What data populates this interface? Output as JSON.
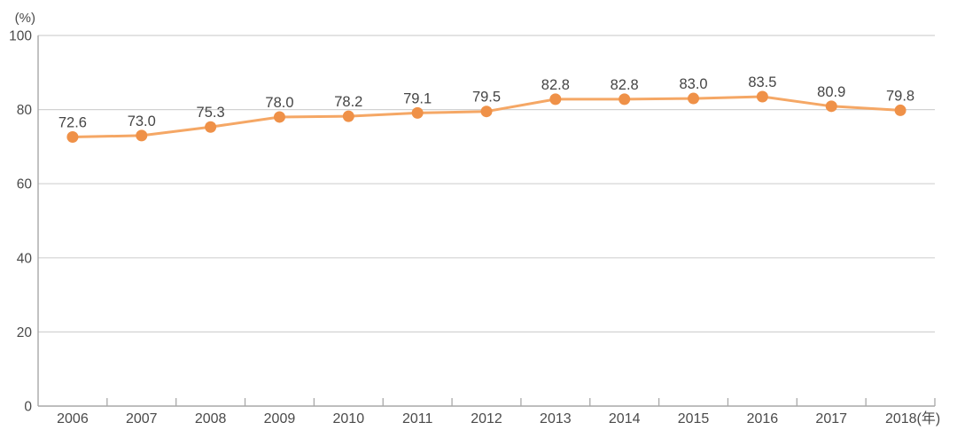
{
  "chart_data": {
    "type": "line",
    "title": "",
    "y_unit_label": "(%)",
    "x_unit_suffix": "(年)",
    "categories": [
      "2006",
      "2007",
      "2008",
      "2009",
      "2010",
      "2011",
      "2012",
      "2013",
      "2014",
      "2015",
      "2016",
      "2017",
      "2018"
    ],
    "values": [
      72.6,
      73.0,
      75.3,
      78.0,
      78.2,
      79.1,
      79.5,
      82.8,
      82.8,
      83.0,
      83.5,
      80.9,
      79.8
    ],
    "point_labels": [
      "72.6",
      "73.0",
      "75.3",
      "78.0",
      "78.2",
      "79.1",
      "79.5",
      "82.8",
      "82.8",
      "83.0",
      "83.5",
      "80.9",
      "79.8"
    ],
    "ylim": [
      0,
      100
    ],
    "yticks": [
      0,
      20,
      40,
      60,
      80,
      100
    ],
    "grid": "horizontal",
    "legend": "none",
    "colors": {
      "line": "#F5A765",
      "marker": "#EF9148",
      "grid": "#d2d2d2",
      "axis": "#a8a8a8",
      "tick": "#a8a8a8",
      "text": "#4a4a4a",
      "point_label_text": "#454545"
    }
  }
}
